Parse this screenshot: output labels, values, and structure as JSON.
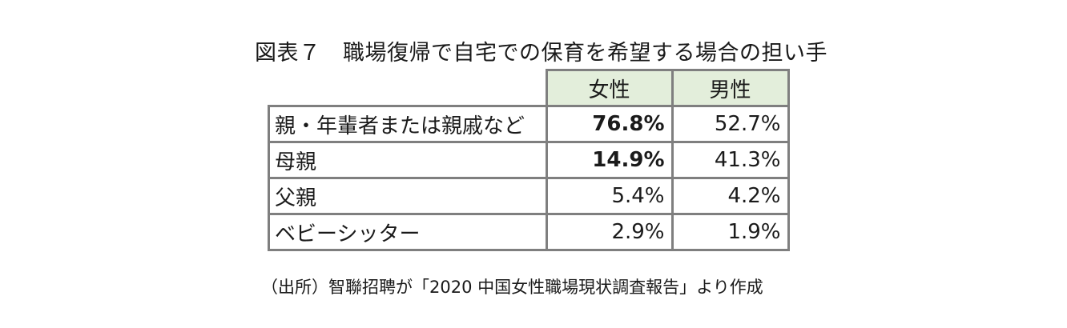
{
  "title": "図表７　職場復帰で自宅での保育を希望する場合の担い手",
  "table": {
    "headers": [
      "女性",
      "男性"
    ],
    "rows": [
      {
        "label": "親・年輩者または親戚など",
        "female": "76.8%",
        "male": "52.7%",
        "female_bold": true
      },
      {
        "label": "母親",
        "female": "14.9%",
        "male": "41.3%",
        "female_bold": true
      },
      {
        "label": "父親",
        "female": "5.4%",
        "male": "4.2%",
        "female_bold": false
      },
      {
        "label": "ベビーシッター",
        "female": "2.9%",
        "male": "1.9%",
        "female_bold": false
      }
    ]
  },
  "source": "（出所）智聯招聘が「2020 中国女性職場現状調査報告」より作成",
  "colors": {
    "header_bg": "#e3eedb",
    "border": "#7f7f7f"
  }
}
